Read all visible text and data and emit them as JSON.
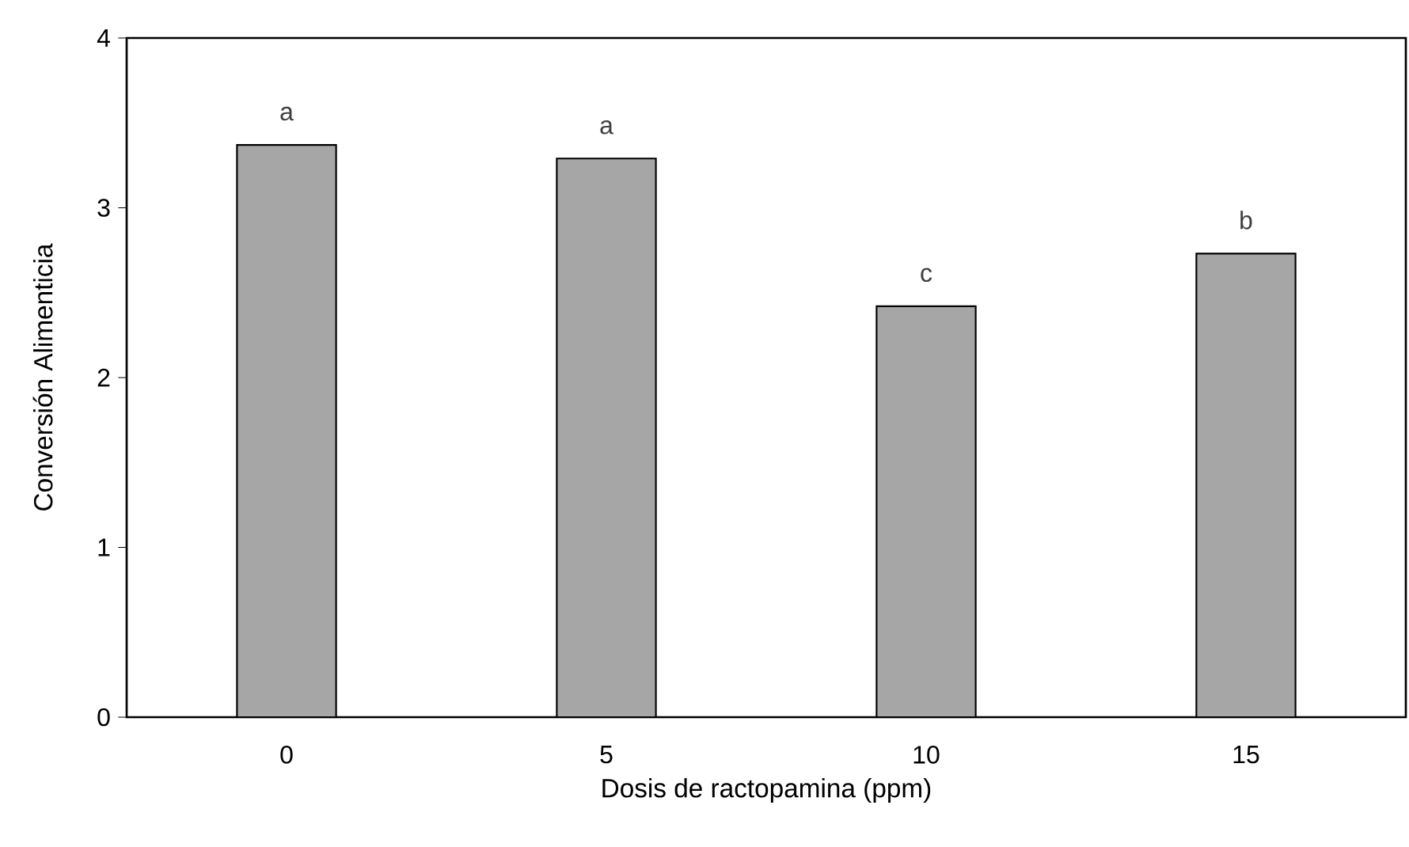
{
  "chart_data": {
    "type": "bar",
    "xlabel": "Dosis de ractopamina (ppm)",
    "ylabel": "Conversión Alimenticia",
    "categories": [
      "0",
      "5",
      "10",
      "15"
    ],
    "values": [
      3.37,
      3.29,
      2.42,
      2.73
    ],
    "color": "#a6a6a6",
    "ylim": [
      0,
      4
    ],
    "yticks": [
      0,
      1,
      2,
      3,
      4
    ],
    "grid": false,
    "annotations": [
      {
        "text": "a",
        "x": "0",
        "y": 3.37
      },
      {
        "text": "a",
        "x": "5",
        "y": 3.29
      },
      {
        "text": "c",
        "x": "10",
        "y": 2.42
      },
      {
        "text": "b",
        "x": "15",
        "y": 2.73
      }
    ]
  }
}
